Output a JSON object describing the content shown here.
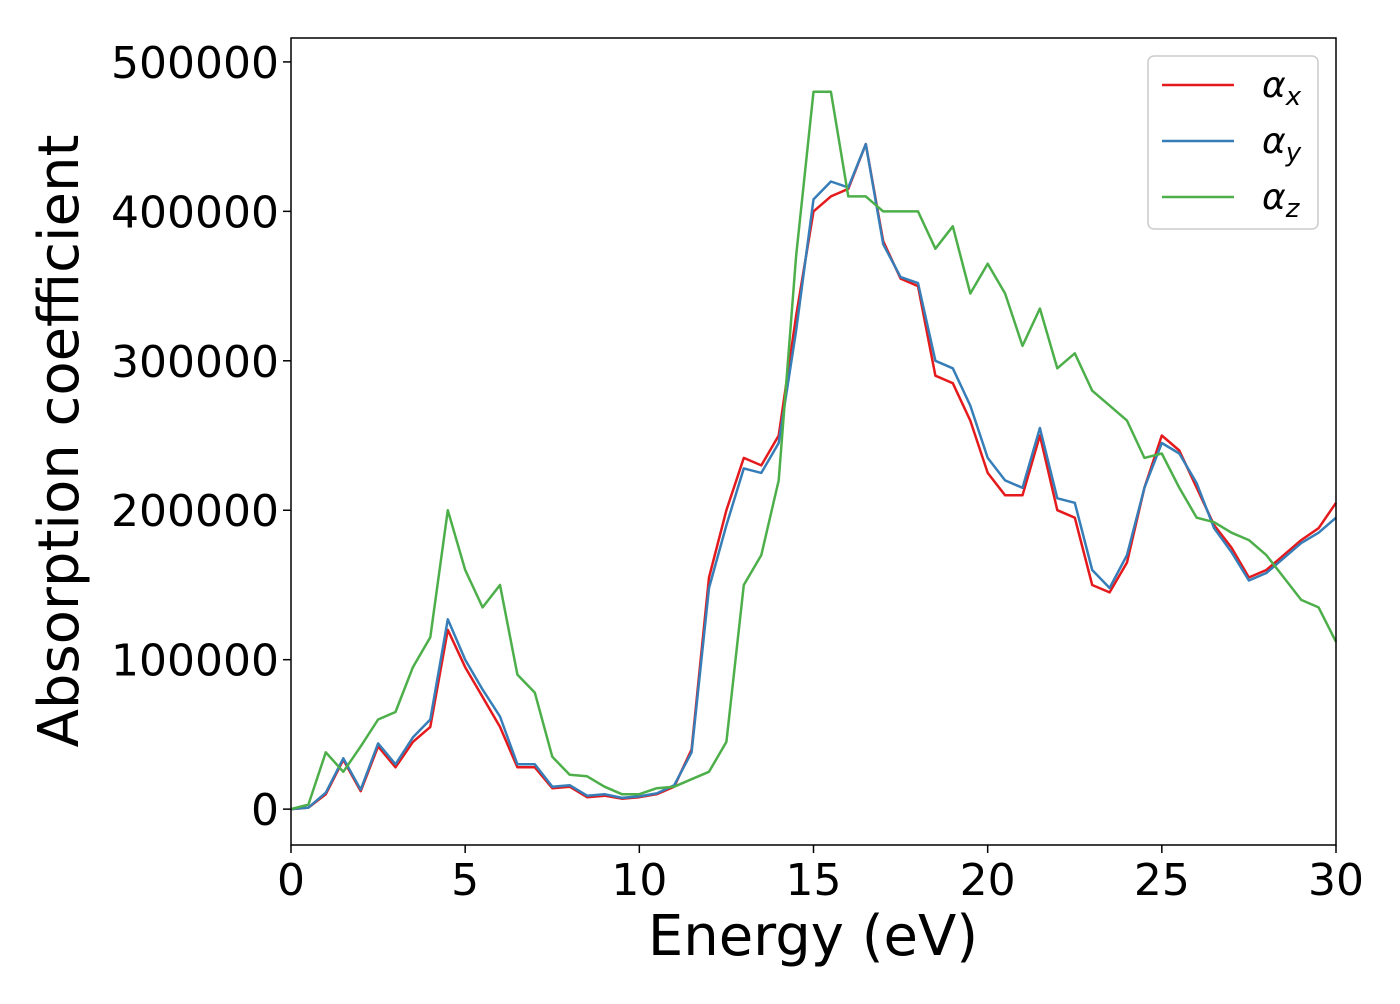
{
  "chart_data": {
    "type": "line",
    "x_label": "Energy (eV)",
    "y_label": "Absorption coefficient",
    "xlim": [
      0,
      30
    ],
    "ylim": [
      -24000,
      516000
    ],
    "xticks": [
      0,
      5,
      10,
      15,
      20,
      25,
      30
    ],
    "yticks": [
      0,
      100000,
      200000,
      300000,
      400000,
      500000
    ],
    "legend": "upper right",
    "grid": false,
    "x": [
      0,
      0.5,
      1,
      1.5,
      2,
      2.5,
      3,
      3.5,
      4,
      4.5,
      5,
      5.5,
      6,
      6.5,
      7,
      7.5,
      8,
      8.5,
      9,
      9.5,
      10,
      10.5,
      11,
      11.5,
      12,
      12.5,
      13,
      13.5,
      14,
      14.5,
      15,
      15.5,
      16,
      16.5,
      17,
      17.5,
      18,
      18.5,
      19,
      19.5,
      20,
      20.5,
      21,
      21.5,
      22,
      22.5,
      23,
      23.5,
      24,
      24.5,
      25,
      25.5,
      26,
      26.5,
      27,
      27.5,
      28,
      28.5,
      29,
      29.5,
      30
    ],
    "series": [
      {
        "name": "αx",
        "color": "#e41a1c",
        "values": [
          0,
          1000,
          10000,
          33000,
          12000,
          42000,
          28000,
          45000,
          55000,
          120000,
          95000,
          75000,
          55000,
          28000,
          28000,
          14000,
          15000,
          8000,
          9000,
          7000,
          8000,
          10000,
          15000,
          40000,
          155000,
          200000,
          235000,
          230000,
          250000,
          330000,
          400000,
          410000,
          415000,
          445000,
          380000,
          355000,
          350000,
          290000,
          285000,
          260000,
          225000,
          210000,
          210000,
          250000,
          200000,
          195000,
          150000,
          145000,
          165000,
          215000,
          250000,
          240000,
          215000,
          190000,
          175000,
          155000,
          160000,
          170000,
          180000,
          188000,
          205000
        ]
      },
      {
        "name": "αy",
        "color": "#377eb8",
        "values": [
          0,
          1000,
          11000,
          34000,
          13000,
          44000,
          30000,
          48000,
          60000,
          127000,
          100000,
          80000,
          62000,
          30000,
          30000,
          15000,
          16000,
          9000,
          10000,
          7500,
          8500,
          10500,
          16000,
          38000,
          148000,
          190000,
          228000,
          225000,
          245000,
          320000,
          408000,
          420000,
          416000,
          445000,
          378000,
          356000,
          352000,
          300000,
          295000,
          270000,
          235000,
          220000,
          215000,
          255000,
          208000,
          205000,
          160000,
          148000,
          170000,
          215000,
          245000,
          238000,
          218000,
          188000,
          172000,
          153000,
          158000,
          168000,
          178000,
          185000,
          195000
        ]
      },
      {
        "name": "αz",
        "color": "#4daf4a",
        "values": [
          0,
          3000,
          38000,
          25000,
          42000,
          60000,
          65000,
          95000,
          115000,
          200000,
          160000,
          135000,
          150000,
          90000,
          78000,
          35000,
          23000,
          22000,
          15000,
          10000,
          10000,
          14000,
          15000,
          20000,
          25000,
          45000,
          150000,
          170000,
          220000,
          370000,
          480000,
          480000,
          410000,
          410000,
          400000,
          400000,
          400000,
          375000,
          390000,
          345000,
          365000,
          345000,
          310000,
          335000,
          295000,
          305000,
          280000,
          270000,
          260000,
          235000,
          238000,
          215000,
          195000,
          192000,
          185000,
          180000,
          170000,
          155000,
          140000,
          135000,
          112000
        ]
      }
    ]
  }
}
